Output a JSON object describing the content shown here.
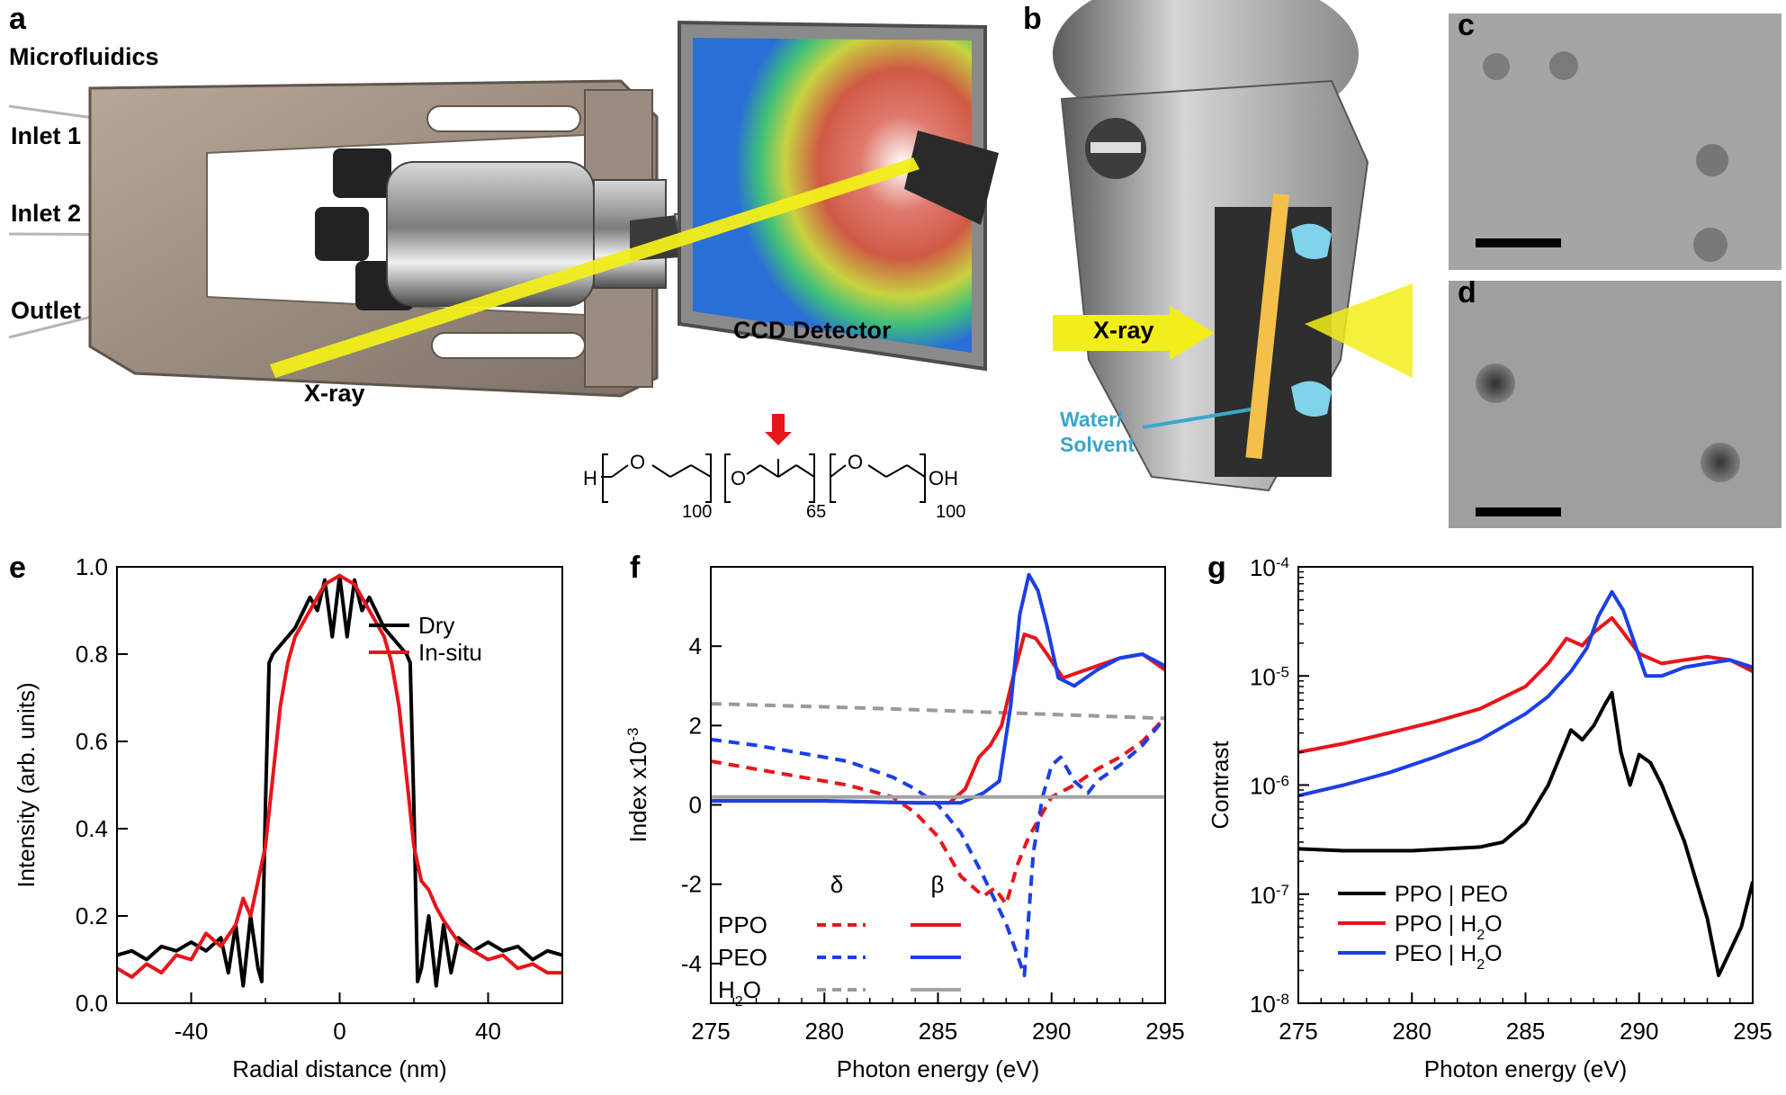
{
  "panels": {
    "a": {
      "letter": "a",
      "labels": {
        "microfluidics": "Microfluidics",
        "inlet1": "Inlet 1",
        "inlet2": "Inlet 2",
        "outlet": "Outlet",
        "xray": "X-ray",
        "ccd": "CCD Detector"
      },
      "structure": {
        "h": "H",
        "o1": "O",
        "o2": "O",
        "o3": "O",
        "oh": "OH",
        "n1": "100",
        "n2": "65",
        "n3": "100"
      }
    },
    "b": {
      "letter": "b",
      "labels": {
        "xray": "X-ray",
        "water_line1": "Water/",
        "water_line2": "Solvent"
      }
    },
    "c": {
      "letter": "c"
    },
    "d": {
      "letter": "d"
    }
  },
  "colors": {
    "black": "#000000",
    "red": "#e8151b",
    "blue": "#1b3fe6",
    "gray_dash": "#9a9a9a",
    "gray_solid": "#a3a3a3",
    "xray_yellow": "#f2ee1a",
    "water_blue": "#3aa7c9"
  },
  "chart_data": [
    {
      "panel": "e",
      "type": "line",
      "xlabel": "Radial distance (nm)",
      "ylabel": "Intensity (arb. units)",
      "xlim": [
        -60,
        60
      ],
      "ylim": [
        0.0,
        1.0
      ],
      "xticks": [
        "-40",
        "0",
        "40"
      ],
      "yticks": [
        "0.0",
        "0.2",
        "0.4",
        "0.6",
        "0.8",
        "1.0"
      ],
      "legend": "top-right",
      "series": [
        {
          "name": "Dry",
          "color": "#000000",
          "x": [
            -60,
            -56,
            -52,
            -48,
            -44,
            -40,
            -36,
            -32,
            -30,
            -28,
            -26,
            -24,
            -22,
            -21,
            -20,
            -19,
            -18,
            -16,
            -12,
            -8,
            -6,
            -4,
            -2,
            0,
            2,
            4,
            6,
            8,
            12,
            16,
            18,
            19,
            20,
            21,
            22,
            24,
            26,
            28,
            30,
            32,
            36,
            40,
            44,
            48,
            52,
            56,
            60
          ],
          "y": [
            0.11,
            0.12,
            0.1,
            0.13,
            0.12,
            0.14,
            0.12,
            0.15,
            0.07,
            0.18,
            0.04,
            0.2,
            0.08,
            0.05,
            0.45,
            0.78,
            0.8,
            0.82,
            0.86,
            0.93,
            0.9,
            0.97,
            0.84,
            0.98,
            0.84,
            0.97,
            0.9,
            0.93,
            0.86,
            0.82,
            0.8,
            0.78,
            0.45,
            0.05,
            0.08,
            0.2,
            0.04,
            0.18,
            0.07,
            0.15,
            0.12,
            0.14,
            0.12,
            0.13,
            0.1,
            0.12,
            0.11
          ]
        },
        {
          "name": "In-situ",
          "color": "#e8151b",
          "x": [
            -60,
            -56,
            -52,
            -48,
            -44,
            -40,
            -36,
            -32,
            -28,
            -26,
            -24,
            -22,
            -20,
            -18,
            -16,
            -14,
            -12,
            -8,
            -4,
            0,
            4,
            8,
            12,
            14,
            16,
            18,
            20,
            22,
            24,
            26,
            28,
            32,
            36,
            40,
            44,
            48,
            52,
            56,
            60
          ],
          "y": [
            0.08,
            0.06,
            0.09,
            0.07,
            0.11,
            0.1,
            0.16,
            0.13,
            0.18,
            0.24,
            0.2,
            0.28,
            0.36,
            0.52,
            0.68,
            0.78,
            0.84,
            0.9,
            0.96,
            0.98,
            0.96,
            0.9,
            0.84,
            0.78,
            0.68,
            0.52,
            0.36,
            0.28,
            0.26,
            0.22,
            0.19,
            0.14,
            0.12,
            0.1,
            0.11,
            0.08,
            0.09,
            0.07,
            0.07
          ]
        }
      ]
    },
    {
      "panel": "f",
      "type": "line",
      "xlabel": "Photon energy (eV)",
      "ylabel": "Index x10",
      "ylabel_exp": "-3",
      "xlim": [
        275,
        295
      ],
      "ylim": [
        -5,
        6
      ],
      "xticks": [
        "275",
        "280",
        "285",
        "290",
        "295"
      ],
      "yticks": [
        "-4",
        "-2",
        "0",
        "2",
        "4"
      ],
      "legend": "bottom-left",
      "legend_headers": [
        "δ",
        "β"
      ],
      "legend_rows": [
        "PPO",
        "PEO",
        "H2O"
      ],
      "series": [
        {
          "name": "PPO δ",
          "color": "#e8151b",
          "dash": true,
          "x": [
            275,
            277,
            279,
            281,
            283,
            284,
            285,
            286,
            287,
            287.5,
            288,
            288.5,
            289,
            290,
            291,
            292,
            293,
            294,
            295
          ],
          "y": [
            1.1,
            0.9,
            0.7,
            0.5,
            0.2,
            -0.2,
            -0.8,
            -1.8,
            -2.3,
            -2.1,
            -2.5,
            -1.5,
            -0.8,
            0.2,
            0.5,
            0.9,
            1.2,
            1.6,
            2.2
          ]
        },
        {
          "name": "PEO δ",
          "color": "#1b3fe6",
          "dash": true,
          "x": [
            275,
            277,
            279,
            281,
            283,
            284,
            285,
            286,
            287,
            287.5,
            288,
            288.5,
            288.8,
            289.2,
            289.6,
            290,
            290.4,
            291,
            291.6,
            292,
            293,
            294,
            295
          ],
          "y": [
            1.65,
            1.5,
            1.3,
            1.1,
            0.7,
            0.4,
            0.0,
            -0.7,
            -1.8,
            -2.4,
            -3.0,
            -3.8,
            -4.3,
            -1.2,
            0.2,
            1.0,
            1.2,
            0.6,
            0.3,
            0.6,
            1.0,
            1.5,
            2.2
          ]
        },
        {
          "name": "H2O δ",
          "color": "#9a9a9a",
          "dash": true,
          "x": [
            275,
            280,
            285,
            290,
            295
          ],
          "y": [
            2.55,
            2.47,
            2.38,
            2.28,
            2.18
          ]
        },
        {
          "name": "PPO β",
          "color": "#e8151b",
          "dash": false,
          "x": [
            275,
            280,
            284,
            285.5,
            286.2,
            286.8,
            287.3,
            287.8,
            288.3,
            288.8,
            289.3,
            289.8,
            290.5,
            291,
            292,
            293,
            294,
            295
          ],
          "y": [
            0.1,
            0.1,
            0.05,
            0.05,
            0.4,
            1.2,
            1.5,
            2.0,
            3.2,
            4.3,
            4.2,
            3.8,
            3.2,
            3.3,
            3.5,
            3.7,
            3.8,
            3.4
          ]
        },
        {
          "name": "PEO β",
          "color": "#1b3fe6",
          "dash": false,
          "x": [
            275,
            280,
            284,
            286,
            287,
            287.7,
            288.2,
            288.6,
            289,
            289.4,
            289.8,
            290.3,
            291,
            292,
            293,
            294,
            295
          ],
          "y": [
            0.1,
            0.1,
            0.05,
            0.05,
            0.3,
            0.6,
            2.5,
            4.8,
            5.8,
            5.4,
            4.5,
            3.2,
            3.0,
            3.4,
            3.7,
            3.8,
            3.5
          ]
        },
        {
          "name": "H2O β",
          "color": "#a3a3a3",
          "dash": false,
          "x": [
            275,
            295
          ],
          "y": [
            0.2,
            0.2
          ]
        }
      ]
    },
    {
      "panel": "g",
      "type": "line",
      "xlabel": "Photon energy (eV)",
      "ylabel": "Contrast",
      "xlim": [
        275,
        295
      ],
      "yscale": "log",
      "ylim": [
        1e-08,
        0.0001
      ],
      "xticks": [
        "275",
        "280",
        "285",
        "290",
        "295"
      ],
      "yticks": [
        "10^-8",
        "10^-7",
        "10^-6",
        "10^-5",
        "10^-4"
      ],
      "legend": "bottom-left",
      "series": [
        {
          "name": "PPO | PEO",
          "color": "#000000",
          "x": [
            275,
            277,
            280,
            283,
            284,
            285,
            286,
            287,
            287.5,
            288,
            288.5,
            288.8,
            289.2,
            289.6,
            290,
            290.5,
            291,
            292,
            293,
            293.5,
            294,
            294.5,
            295
          ],
          "y": [
            2.6e-07,
            2.5e-07,
            2.5e-07,
            2.7e-07,
            3e-07,
            4.5e-07,
            1e-06,
            3.2e-06,
            2.6e-06,
            3.5e-06,
            5.5e-06,
            7e-06,
            2e-06,
            1e-06,
            1.9e-06,
            1.6e-06,
            1e-06,
            3e-07,
            6e-08,
            1.8e-08,
            3e-08,
            5e-08,
            1.3e-07
          ]
        },
        {
          "name": "PPO | H2O",
          "color": "#e8151b",
          "x": [
            275,
            277,
            279,
            281,
            283,
            285,
            286,
            286.8,
            287.5,
            288,
            288.8,
            289.3,
            290,
            291,
            292,
            293,
            294,
            295
          ],
          "y": [
            2e-06,
            2.4e-06,
            3e-06,
            3.8e-06,
            5e-06,
            8e-06,
            1.3e-05,
            2.2e-05,
            1.9e-05,
            2.5e-05,
            3.4e-05,
            2.5e-05,
            1.6e-05,
            1.3e-05,
            1.4e-05,
            1.5e-05,
            1.4e-05,
            1.1e-05
          ]
        },
        {
          "name": "PEO | H2O",
          "color": "#1b3fe6",
          "x": [
            275,
            277,
            279,
            281,
            283,
            285,
            286,
            287,
            287.7,
            288.2,
            288.8,
            289.3,
            289.8,
            290.3,
            291,
            292,
            293,
            294,
            295
          ],
          "y": [
            8e-07,
            1e-06,
            1.3e-06,
            1.8e-06,
            2.6e-06,
            4.5e-06,
            6.5e-06,
            1.1e-05,
            1.8e-05,
            3.5e-05,
            5.9e-05,
            4e-05,
            2e-05,
            1e-05,
            1e-05,
            1.2e-05,
            1.3e-05,
            1.4e-05,
            1.2e-05
          ]
        }
      ]
    }
  ]
}
